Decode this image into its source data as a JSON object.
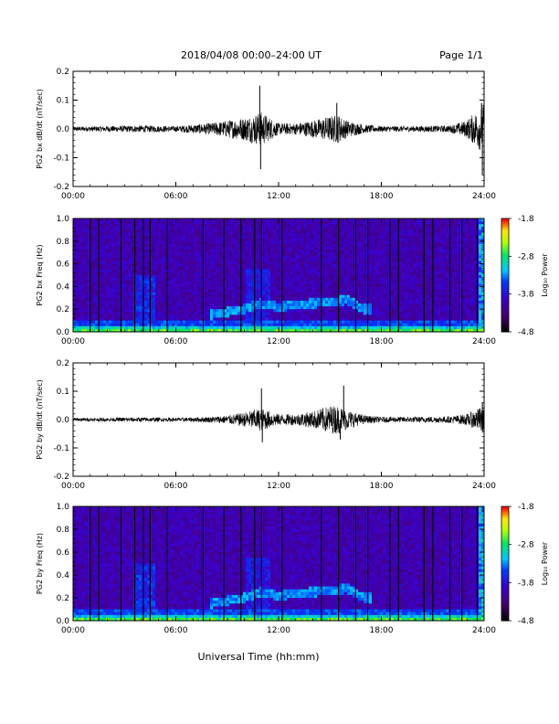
{
  "header": {
    "title": "2018/04/08   00:00–24:00 UT",
    "page": "Page 1/1"
  },
  "xlabel": "Universal Time (hh:mm)",
  "chart_data": [
    {
      "type": "line",
      "ylabel": "PG2 bx dB/dt (nT/sec)",
      "xlim": [
        0,
        24
      ],
      "ylim": [
        -0.2,
        0.2
      ],
      "x_ticks": [
        "00:00",
        "06:00",
        "12:00",
        "18:00",
        "24:00"
      ],
      "y_ticks": [
        "0.2",
        "0.1",
        "0.0",
        "-0.1",
        "-0.2"
      ],
      "envelope": {
        "hours": [
          0,
          2,
          4,
          6,
          7,
          8,
          9,
          10,
          10.5,
          11,
          11.5,
          12,
          13,
          14,
          15,
          15.5,
          16,
          17,
          18,
          20,
          22,
          23,
          23.5,
          24
        ],
        "amplitude": [
          0.008,
          0.01,
          0.012,
          0.01,
          0.015,
          0.02,
          0.03,
          0.04,
          0.05,
          0.06,
          0.04,
          0.02,
          0.02,
          0.03,
          0.045,
          0.05,
          0.03,
          0.015,
          0.01,
          0.01,
          0.012,
          0.03,
          0.06,
          0.09
        ]
      },
      "spikes": [
        {
          "x": 10.9,
          "y": 0.15
        },
        {
          "x": 10.95,
          "y": -0.14
        },
        {
          "x": 15.4,
          "y": 0.09
        },
        {
          "x": 23.9,
          "y": -0.16
        },
        {
          "x": 23.85,
          "y": 0.09
        }
      ]
    },
    {
      "type": "heatmap",
      "ylabel": "PG2 bx Freq (Hz)",
      "xlim": [
        0,
        24
      ],
      "ylim": [
        0,
        1.0
      ],
      "x_ticks": [
        "00:00",
        "06:00",
        "12:00",
        "18:00",
        "24:00"
      ],
      "y_ticks": [
        "1.0",
        "0.8",
        "0.6",
        "0.4",
        "0.2",
        "0.0"
      ],
      "colorbar": {
        "label": "Log₁₀ Power",
        "ticks": [
          "-1.8",
          "-2.8",
          "-3.8",
          "-4.8"
        ],
        "range": [
          -4.8,
          -1.8
        ]
      },
      "gap_lines_hours": [
        1.0,
        1.5,
        2.8,
        3.6,
        4.1,
        4.5,
        5.5,
        7.6,
        8.8,
        9.8,
        10.6,
        11.0,
        12.2,
        14.5,
        15.5,
        16.5,
        17.2,
        18.5,
        19.0,
        20.5,
        21.0,
        22.0,
        22.7,
        23.6
      ],
      "band": {
        "hours": [
          8,
          10,
          11,
          12,
          14,
          16,
          17
        ],
        "freq": [
          0.15,
          0.2,
          0.25,
          0.22,
          0.25,
          0.28,
          0.2
        ]
      }
    },
    {
      "type": "line",
      "ylabel": "PG2 by dB/dt (nT/sec)",
      "xlim": [
        0,
        24
      ],
      "ylim": [
        -0.2,
        0.2
      ],
      "x_ticks": [
        "00:00",
        "06:00",
        "12:00",
        "18:00",
        "24:00"
      ],
      "y_ticks": [
        "0.2",
        "0.1",
        "0.0",
        "-0.1",
        "-0.2"
      ],
      "envelope": {
        "hours": [
          0,
          2,
          4,
          6,
          7,
          8,
          9,
          10,
          10.5,
          11,
          11.5,
          12,
          13,
          14,
          15,
          15.5,
          16,
          17,
          18,
          20,
          22,
          23,
          23.5,
          24
        ],
        "amplitude": [
          0.006,
          0.006,
          0.008,
          0.006,
          0.008,
          0.01,
          0.015,
          0.025,
          0.035,
          0.04,
          0.03,
          0.02,
          0.02,
          0.03,
          0.05,
          0.05,
          0.035,
          0.015,
          0.01,
          0.01,
          0.012,
          0.02,
          0.035,
          0.05
        ]
      },
      "spikes": [
        {
          "x": 11.0,
          "y": 0.11
        },
        {
          "x": 11.05,
          "y": -0.08
        },
        {
          "x": 15.8,
          "y": 0.12
        },
        {
          "x": 15.6,
          "y": -0.07
        },
        {
          "x": 23.9,
          "y": 0.06
        }
      ]
    },
    {
      "type": "heatmap",
      "ylabel": "PG2 by Freq (Hz)",
      "xlim": [
        0,
        24
      ],
      "ylim": [
        0,
        1.0
      ],
      "x_ticks": [
        "00:00",
        "06:00",
        "12:00",
        "18:00",
        "24:00"
      ],
      "y_ticks": [
        "1.0",
        "0.8",
        "0.6",
        "0.4",
        "0.2",
        "0.0"
      ],
      "colorbar": {
        "label": "Log₁₀ Power",
        "ticks": [
          "-1.8",
          "-2.8",
          "-3.8",
          "-4.8"
        ],
        "range": [
          -4.8,
          -1.8
        ]
      },
      "gap_lines_hours": [
        1.0,
        1.5,
        2.8,
        3.6,
        4.1,
        4.5,
        5.5,
        7.6,
        8.8,
        9.8,
        10.6,
        11.0,
        12.2,
        14.5,
        15.5,
        16.5,
        17.2,
        18.5,
        19.0,
        20.5,
        21.0,
        22.0,
        22.7,
        23.6
      ],
      "band": {
        "hours": [
          8,
          10,
          11,
          12,
          14,
          16,
          17
        ],
        "freq": [
          0.15,
          0.2,
          0.25,
          0.22,
          0.25,
          0.28,
          0.2
        ]
      }
    }
  ]
}
